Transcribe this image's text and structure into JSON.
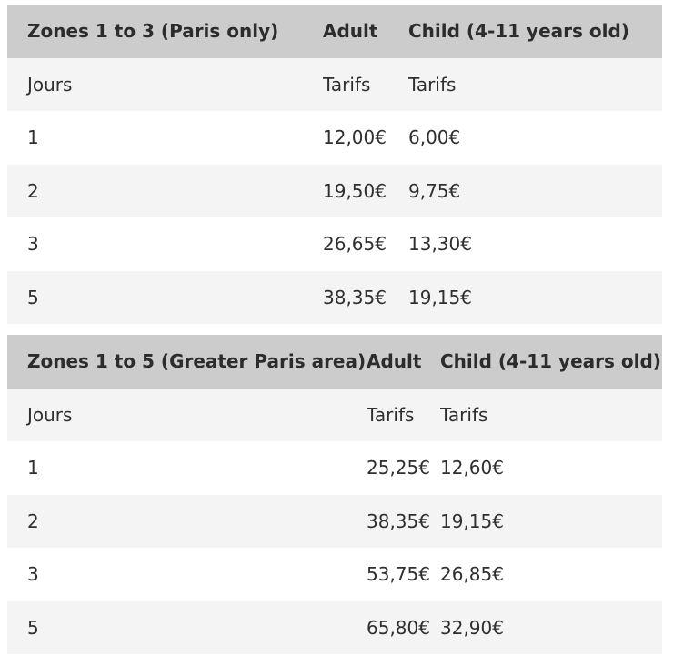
{
  "tables": [
    {
      "header": [
        "Zones 1 to 3 (Paris only)",
        "Adult",
        "Child (4-11 years old)"
      ],
      "subheader": [
        "Jours",
        "Tarifs",
        "Tarifs"
      ],
      "rows": [
        [
          "1",
          "12,00€",
          "6,00€"
        ],
        [
          "2",
          "19,50€",
          "9,75€"
        ],
        [
          "3",
          "26,65€",
          "13,30€"
        ],
        [
          "5",
          "38,35€",
          "19,15€"
        ]
      ]
    },
    {
      "header": [
        "Zones 1 to 5 (Greater Paris area)",
        "Adult",
        "Child (4-11 years old)"
      ],
      "subheader": [
        "Jours",
        "Tarifs",
        "Tarifs"
      ],
      "rows": [
        [
          "1",
          "25,25€",
          "12,60€"
        ],
        [
          "2",
          "38,35€",
          "19,15€"
        ],
        [
          "3",
          "53,75€",
          "26,85€"
        ],
        [
          "5",
          "65,80€",
          "32,90€"
        ]
      ]
    }
  ]
}
